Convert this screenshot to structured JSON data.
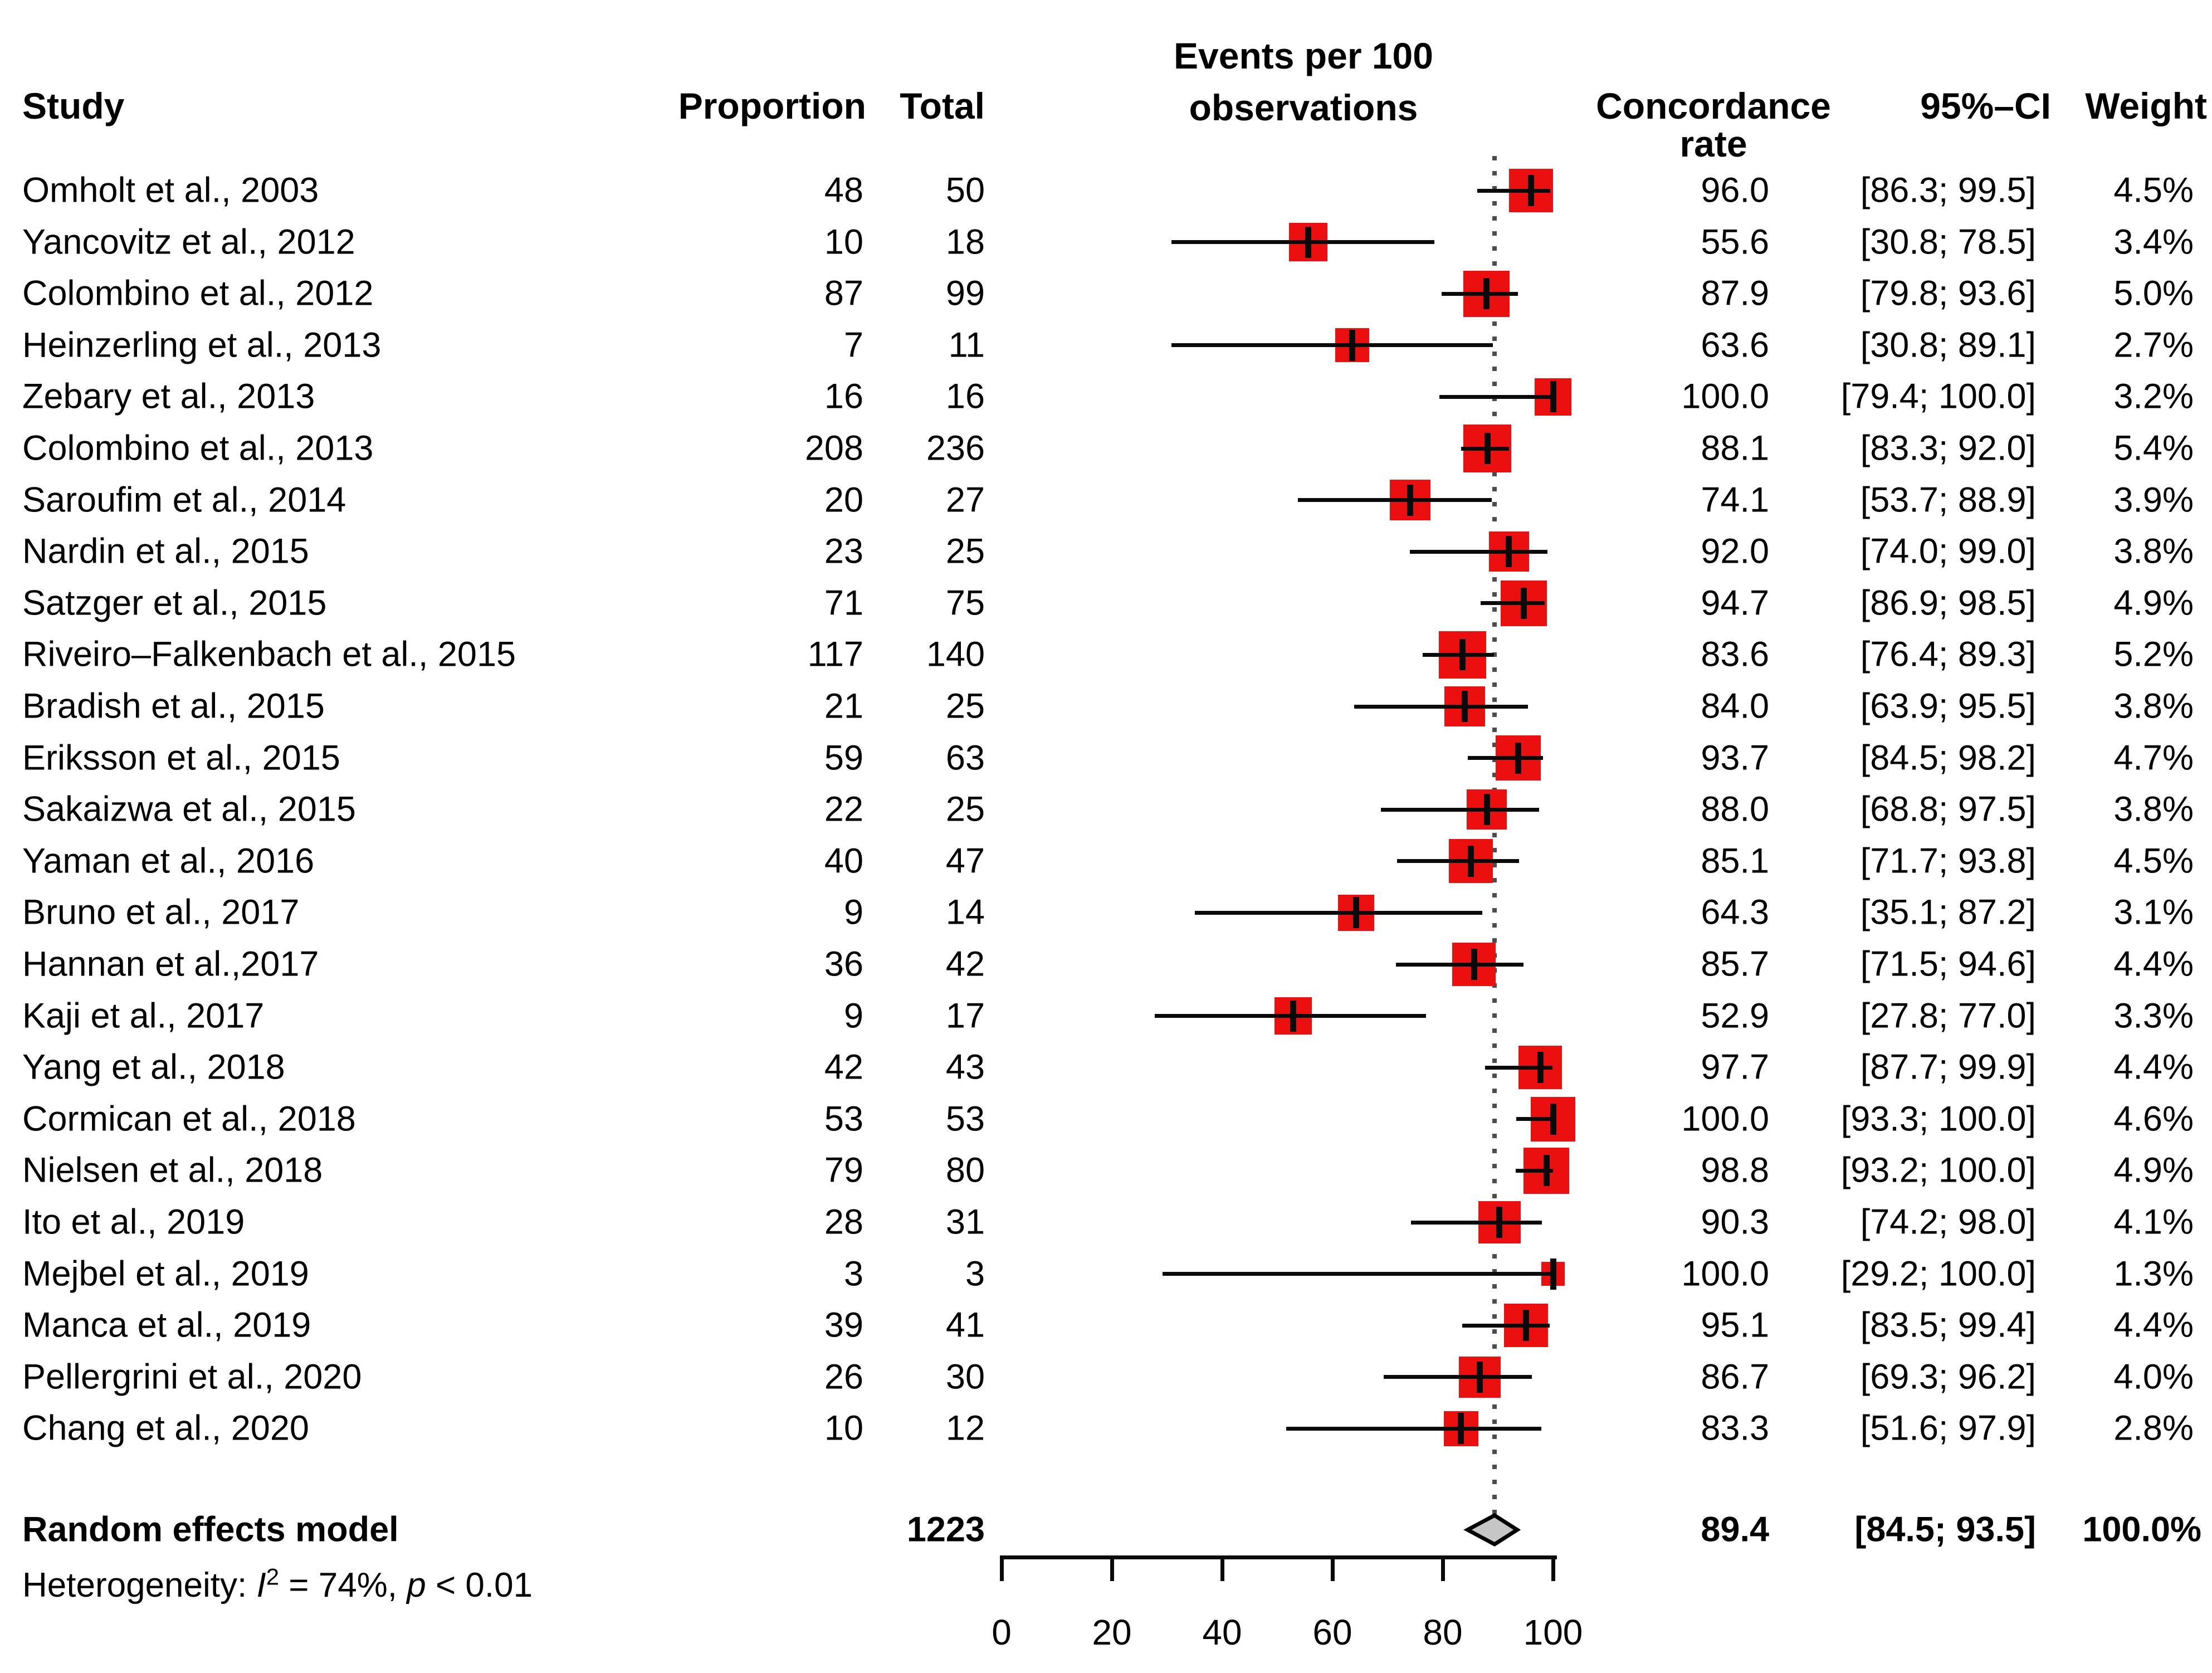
{
  "header": {
    "study": "Study",
    "proportion": "Proportion",
    "total": "Total",
    "events_line1": "Events per 100",
    "events_line2": "observations",
    "concordance_line1": "Concordance",
    "concordance_line2": "rate",
    "ci": "95%–CI",
    "weight": "Weight"
  },
  "summary": {
    "label": "Random effects model",
    "total": "1223",
    "rate": "89.4",
    "ci": "[84.5; 93.5]",
    "weight": "100.0%",
    "estimate": 89.4,
    "ci_low": 84.5,
    "ci_high": 93.5
  },
  "het": {
    "prefix": "Heterogeneity: ",
    "i": "I",
    "sup": "2",
    "mid": " = 74%, ",
    "p": "p",
    "tail": " < 0.01"
  },
  "colors": {
    "square": "#ec0f0f",
    "diamond_fill": "#c6c6c6",
    "diamond_stroke": "#000000",
    "line": "#0a0a0a",
    "dotted": "#4d4d4d"
  },
  "chart_data": {
    "type": "forest",
    "title": "",
    "xlabel": "Events per 100 observations",
    "axis": {
      "min": 0,
      "max": 100,
      "ticks": [
        0,
        20,
        40,
        60,
        80,
        100
      ]
    },
    "overall": {
      "estimate": 89.4,
      "ci_low": 84.5,
      "ci_high": 93.5,
      "weight_pct": 100.0,
      "total": 1223
    },
    "heterogeneity": "I2 = 74%, p < 0.01",
    "studies": [
      {
        "study": "Omholt et al., 2003",
        "proportion": 48,
        "total": 50,
        "rate": 96.0,
        "ci_low": 86.3,
        "ci_high": 99.5,
        "weight": 4.5,
        "rate_text": "96.0",
        "ci_text": "[86.3; 99.5]",
        "weight_text": "4.5%"
      },
      {
        "study": "Yancovitz et al., 2012",
        "proportion": 10,
        "total": 18,
        "rate": 55.6,
        "ci_low": 30.8,
        "ci_high": 78.5,
        "weight": 3.4,
        "rate_text": "55.6",
        "ci_text": "[30.8; 78.5]",
        "weight_text": "3.4%"
      },
      {
        "study": "Colombino et al., 2012",
        "proportion": 87,
        "total": 99,
        "rate": 87.9,
        "ci_low": 79.8,
        "ci_high": 93.6,
        "weight": 5.0,
        "rate_text": "87.9",
        "ci_text": "[79.8; 93.6]",
        "weight_text": "5.0%"
      },
      {
        "study": "Heinzerling et al., 2013",
        "proportion": 7,
        "total": 11,
        "rate": 63.6,
        "ci_low": 30.8,
        "ci_high": 89.1,
        "weight": 2.7,
        "rate_text": "63.6",
        "ci_text": "[30.8; 89.1]",
        "weight_text": "2.7%"
      },
      {
        "study": "Zebary et al., 2013",
        "proportion": 16,
        "total": 16,
        "rate": 100.0,
        "ci_low": 79.4,
        "ci_high": 100.0,
        "weight": 3.2,
        "rate_text": "100.0",
        "ci_text": "[79.4; 100.0]",
        "weight_text": "3.2%"
      },
      {
        "study": "Colombino et al., 2013",
        "proportion": 208,
        "total": 236,
        "rate": 88.1,
        "ci_low": 83.3,
        "ci_high": 92.0,
        "weight": 5.4,
        "rate_text": "88.1",
        "ci_text": "[83.3; 92.0]",
        "weight_text": "5.4%"
      },
      {
        "study": "Saroufim et al., 2014",
        "proportion": 20,
        "total": 27,
        "rate": 74.1,
        "ci_low": 53.7,
        "ci_high": 88.9,
        "weight": 3.9,
        "rate_text": "74.1",
        "ci_text": "[53.7; 88.9]",
        "weight_text": "3.9%"
      },
      {
        "study": "Nardin et al., 2015",
        "proportion": 23,
        "total": 25,
        "rate": 92.0,
        "ci_low": 74.0,
        "ci_high": 99.0,
        "weight": 3.8,
        "rate_text": "92.0",
        "ci_text": "[74.0; 99.0]",
        "weight_text": "3.8%"
      },
      {
        "study": "Satzger et al., 2015",
        "proportion": 71,
        "total": 75,
        "rate": 94.7,
        "ci_low": 86.9,
        "ci_high": 98.5,
        "weight": 4.9,
        "rate_text": "94.7",
        "ci_text": "[86.9; 98.5]",
        "weight_text": "4.9%"
      },
      {
        "study": "Riveiro–Falkenbach et al., 2015",
        "proportion": 117,
        "total": 140,
        "rate": 83.6,
        "ci_low": 76.4,
        "ci_high": 89.3,
        "weight": 5.2,
        "rate_text": "83.6",
        "ci_text": "[76.4; 89.3]",
        "weight_text": "5.2%"
      },
      {
        "study": "Bradish et al., 2015",
        "proportion": 21,
        "total": 25,
        "rate": 84.0,
        "ci_low": 63.9,
        "ci_high": 95.5,
        "weight": 3.8,
        "rate_text": "84.0",
        "ci_text": "[63.9; 95.5]",
        "weight_text": "3.8%"
      },
      {
        "study": "Eriksson et al., 2015",
        "proportion": 59,
        "total": 63,
        "rate": 93.7,
        "ci_low": 84.5,
        "ci_high": 98.2,
        "weight": 4.7,
        "rate_text": "93.7",
        "ci_text": "[84.5; 98.2]",
        "weight_text": "4.7%"
      },
      {
        "study": "Sakaizwa et al., 2015",
        "proportion": 22,
        "total": 25,
        "rate": 88.0,
        "ci_low": 68.8,
        "ci_high": 97.5,
        "weight": 3.8,
        "rate_text": "88.0",
        "ci_text": "[68.8; 97.5]",
        "weight_text": "3.8%"
      },
      {
        "study": "Yaman et al., 2016",
        "proportion": 40,
        "total": 47,
        "rate": 85.1,
        "ci_low": 71.7,
        "ci_high": 93.8,
        "weight": 4.5,
        "rate_text": "85.1",
        "ci_text": "[71.7; 93.8]",
        "weight_text": "4.5%"
      },
      {
        "study": "Bruno et al., 2017",
        "proportion": 9,
        "total": 14,
        "rate": 64.3,
        "ci_low": 35.1,
        "ci_high": 87.2,
        "weight": 3.1,
        "rate_text": "64.3",
        "ci_text": "[35.1; 87.2]",
        "weight_text": "3.1%"
      },
      {
        "study": "Hannan et al.,2017",
        "proportion": 36,
        "total": 42,
        "rate": 85.7,
        "ci_low": 71.5,
        "ci_high": 94.6,
        "weight": 4.4,
        "rate_text": "85.7",
        "ci_text": "[71.5; 94.6]",
        "weight_text": "4.4%"
      },
      {
        "study": "Kaji et al., 2017",
        "proportion": 9,
        "total": 17,
        "rate": 52.9,
        "ci_low": 27.8,
        "ci_high": 77.0,
        "weight": 3.3,
        "rate_text": "52.9",
        "ci_text": "[27.8; 77.0]",
        "weight_text": "3.3%"
      },
      {
        "study": "Yang et al., 2018",
        "proportion": 42,
        "total": 43,
        "rate": 97.7,
        "ci_low": 87.7,
        "ci_high": 99.9,
        "weight": 4.4,
        "rate_text": "97.7",
        "ci_text": "[87.7; 99.9]",
        "weight_text": "4.4%"
      },
      {
        "study": "Cormican et al., 2018",
        "proportion": 53,
        "total": 53,
        "rate": 100.0,
        "ci_low": 93.3,
        "ci_high": 100.0,
        "weight": 4.6,
        "rate_text": "100.0",
        "ci_text": "[93.3; 100.0]",
        "weight_text": "4.6%"
      },
      {
        "study": "Nielsen et al., 2018",
        "proportion": 79,
        "total": 80,
        "rate": 98.8,
        "ci_low": 93.2,
        "ci_high": 100.0,
        "weight": 4.9,
        "rate_text": "98.8",
        "ci_text": "[93.2; 100.0]",
        "weight_text": "4.9%"
      },
      {
        "study": "Ito et al., 2019",
        "proportion": 28,
        "total": 31,
        "rate": 90.3,
        "ci_low": 74.2,
        "ci_high": 98.0,
        "weight": 4.1,
        "rate_text": "90.3",
        "ci_text": "[74.2; 98.0]",
        "weight_text": "4.1%"
      },
      {
        "study": "Mejbel et al., 2019",
        "proportion": 3,
        "total": 3,
        "rate": 100.0,
        "ci_low": 29.2,
        "ci_high": 100.0,
        "weight": 1.3,
        "rate_text": "100.0",
        "ci_text": "[29.2; 100.0]",
        "weight_text": "1.3%"
      },
      {
        "study": "Manca et al., 2019",
        "proportion": 39,
        "total": 41,
        "rate": 95.1,
        "ci_low": 83.5,
        "ci_high": 99.4,
        "weight": 4.4,
        "rate_text": "95.1",
        "ci_text": "[83.5; 99.4]",
        "weight_text": "4.4%"
      },
      {
        "study": "Pellergrini et al., 2020",
        "proportion": 26,
        "total": 30,
        "rate": 86.7,
        "ci_low": 69.3,
        "ci_high": 96.2,
        "weight": 4.0,
        "rate_text": "86.7",
        "ci_text": "[69.3; 96.2]",
        "weight_text": "4.0%"
      },
      {
        "study": "Chang et al., 2020",
        "proportion": 10,
        "total": 12,
        "rate": 83.3,
        "ci_low": 51.6,
        "ci_high": 97.9,
        "weight": 2.8,
        "rate_text": "83.3",
        "ci_text": "[51.6; 97.9]",
        "weight_text": "2.8%"
      }
    ]
  }
}
